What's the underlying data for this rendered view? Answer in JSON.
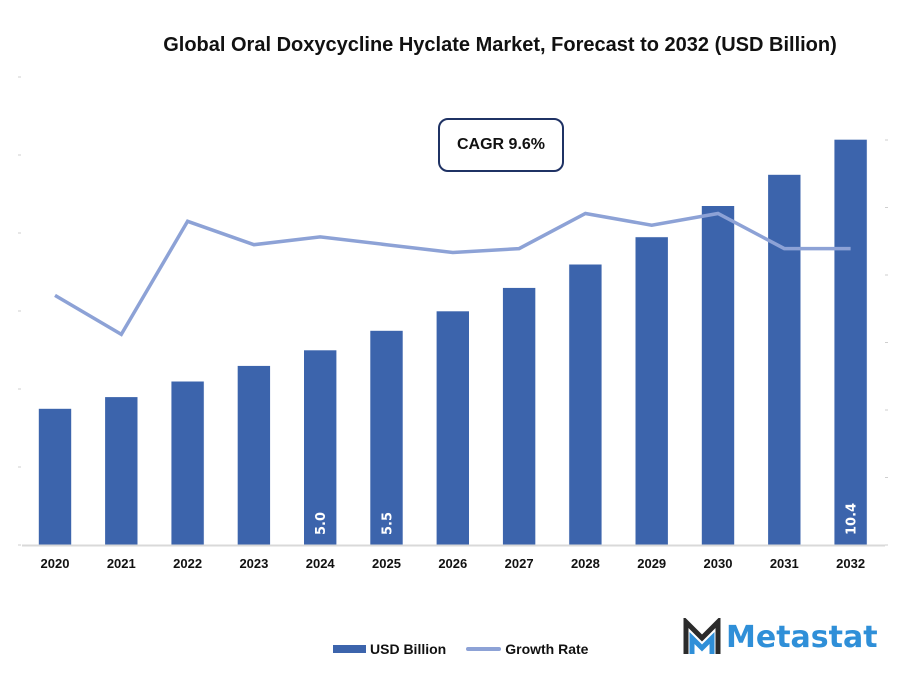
{
  "chart_data": {
    "type": "bar",
    "title": "Global Oral Doxycycline Hyclate Market, Forecast to 2032 (USD Billion)",
    "xlabel": "",
    "ylabel": "",
    "categories": [
      "2020",
      "2021",
      "2022",
      "2023",
      "2024",
      "2025",
      "2026",
      "2027",
      "2028",
      "2029",
      "2030",
      "2031",
      "2032"
    ],
    "series": [
      {
        "name": "USD Billion",
        "type": "bar",
        "color": "#3c64ac",
        "values": [
          3.5,
          3.8,
          4.2,
          4.6,
          5.0,
          5.5,
          6.0,
          6.6,
          7.2,
          7.9,
          8.7,
          9.5,
          10.4
        ],
        "labels": {
          "2024": "5.0",
          "2025": "5.5",
          "2032": "10.4"
        }
      },
      {
        "name": "Growth Rate",
        "type": "line",
        "color": "#8da2d6",
        "axis": "secondary",
        "values": [
          6.4,
          5.4,
          8.3,
          7.7,
          7.9,
          7.7,
          7.5,
          7.6,
          8.5,
          8.2,
          8.5,
          7.6,
          7.6
        ]
      }
    ],
    "ylim": [
      0,
      11
    ],
    "y2lim": [
      0,
      11
    ],
    "grid": false,
    "legend_position": "bottom",
    "annotation": "CAGR 9.6%"
  },
  "legend": {
    "bar_label": "USD Billion",
    "line_label": "Growth Rate"
  },
  "brand": {
    "name": "Metastat",
    "color": "#2f8fd8",
    "logo_dark": "#2b2b2b"
  }
}
